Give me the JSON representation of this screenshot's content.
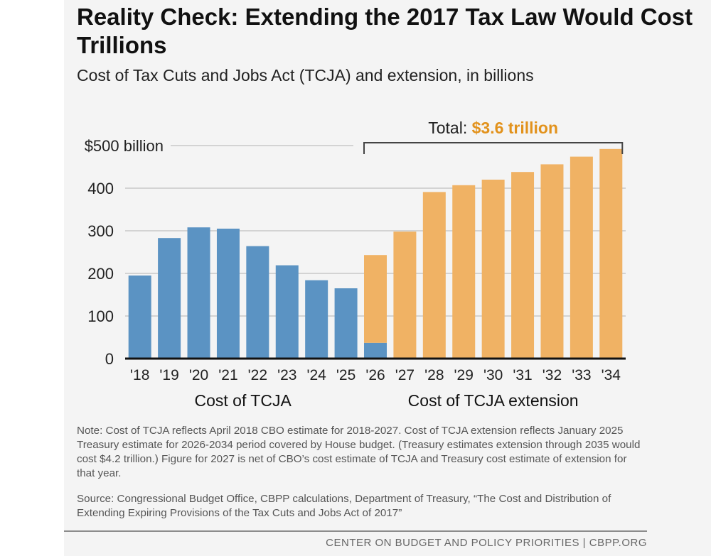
{
  "header": {
    "title": "Reality Check: Extending the 2017 Tax Law Would Cost Trillions",
    "subtitle": "Cost of Tax Cuts and Jobs Act (TCJA) and extension, in billions"
  },
  "colors": {
    "tcja": "#5b93c3",
    "extension": "#f0b264",
    "total_accent": "#e2921c",
    "gridline": "#c8c8c8"
  },
  "chart_data": {
    "type": "bar",
    "stacked": true,
    "categories": [
      "'18",
      "'19",
      "'20",
      "'21",
      "'22",
      "'23",
      "'24",
      "'25",
      "'26",
      "'27",
      "'28",
      "'29",
      "'30",
      "'31",
      "'32",
      "'33",
      "'34"
    ],
    "series": [
      {
        "name": "Cost of TCJA",
        "values": [
          195,
          283,
          308,
          305,
          264,
          219,
          184,
          165,
          37,
          0,
          0,
          0,
          0,
          0,
          0,
          0,
          0
        ]
      },
      {
        "name": "Cost of TCJA extension",
        "values": [
          0,
          0,
          0,
          0,
          0,
          0,
          0,
          0,
          206,
          298,
          391,
          407,
          420,
          438,
          456,
          474,
          492
        ]
      }
    ],
    "y_ticks": [
      {
        "value": 0,
        "label": "0"
      },
      {
        "value": 100,
        "label": "100"
      },
      {
        "value": 200,
        "label": "200"
      },
      {
        "value": 300,
        "label": "300"
      },
      {
        "value": 400,
        "label": "400"
      },
      {
        "value": 500,
        "label": "$500 billion"
      }
    ],
    "ylim": [
      0,
      500
    ],
    "group_labels": [
      {
        "text": "Cost of TCJA",
        "from": 0,
        "to": 7
      },
      {
        "text": "Cost of TCJA extension",
        "from": 8,
        "to": 16
      }
    ],
    "total_bracket": {
      "label": "Total:",
      "value": "$3.6 trillion",
      "from": 8,
      "to": 16
    },
    "grid": true
  },
  "notes": {
    "note": "Note: Cost of TCJA reflects April 2018 CBO estimate for 2018-2027. Cost of TCJA extension reflects January 2025 Treasury estimate for 2026-2034 period covered by House budget. (Treasury estimates extension through 2035 would cost $4.2 trillion.) Figure for 2027 is net of CBO’s cost estimate of TCJA and Treasury cost estimate of extension for that year.",
    "source": "Source: Congressional Budget Office, CBPP calculations, Department of Treasury, “The Cost and Distribution of Extending Expiring Provisions of the Tax Cuts and Jobs Act of 2017”"
  },
  "footer": {
    "text": "CENTER ON BUDGET AND POLICY PRIORITIES | CBPP.ORG"
  }
}
